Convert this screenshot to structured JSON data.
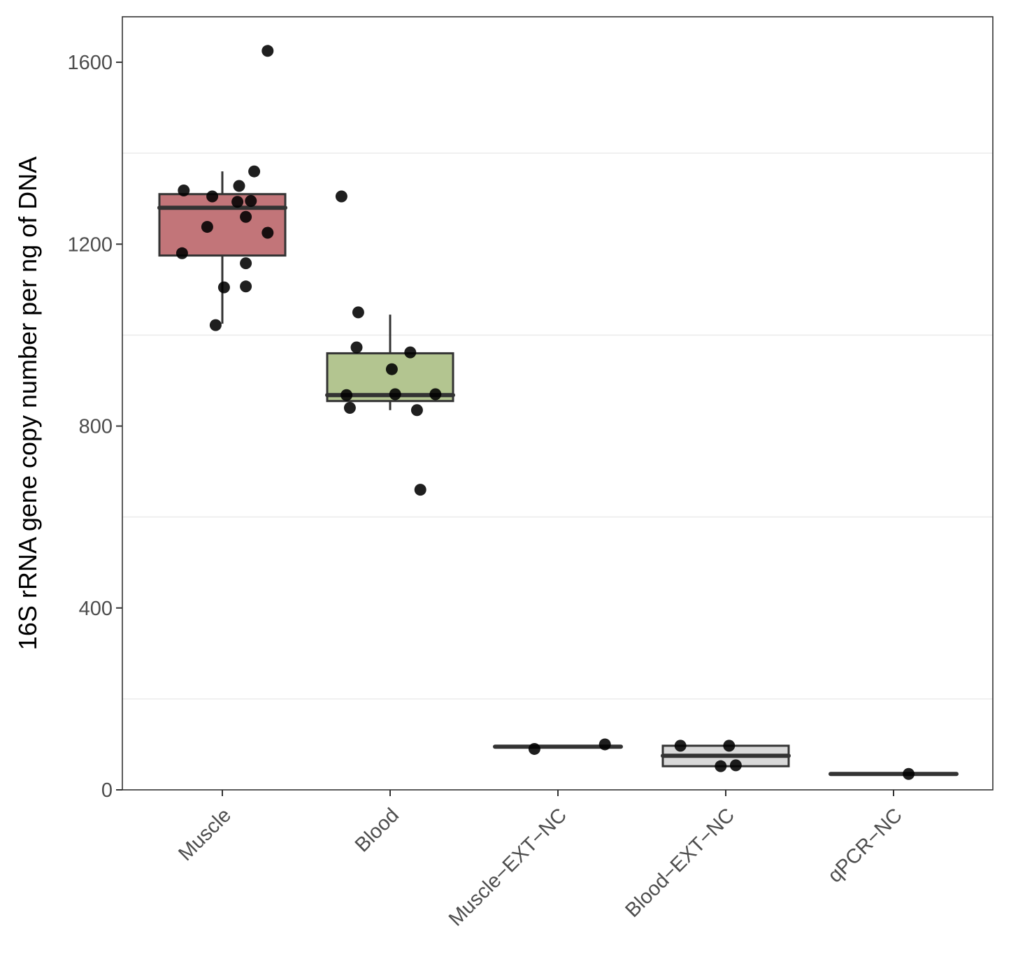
{
  "chart_data": {
    "type": "boxplot",
    "title": "",
    "xlabel": "",
    "ylabel": "16S rRNA gene copy number per ng of DNA",
    "ylim": [
      0,
      1700
    ],
    "yticks": [
      0,
      400,
      800,
      1200,
      1600
    ],
    "grid": "horizontal",
    "categories": [
      "Muscle",
      "Blood",
      "Muscle−EXT−NC",
      "Blood−EXT−NC",
      "qPCR−NC"
    ],
    "boxes": [
      {
        "category": "Muscle",
        "fill": "#c27579",
        "whisker_low": 1025,
        "q1": 1175,
        "median": 1280,
        "q3": 1310,
        "whisker_high": 1360
      },
      {
        "category": "Blood",
        "fill": "#b3c590",
        "whisker_low": 835,
        "q1": 855,
        "median": 868,
        "q3": 960,
        "whisker_high": 1045
      },
      {
        "category": "Muscle−EXT−NC",
        "fill": "#d0d0d0",
        "whisker_low": 95,
        "q1": 95,
        "median": 95,
        "q3": 95,
        "whisker_high": 95
      },
      {
        "category": "Blood−EXT−NC",
        "fill": "#d9d9d9",
        "whisker_low": 52,
        "q1": 52,
        "median": 75,
        "q3": 97,
        "whisker_high": 97
      },
      {
        "category": "qPCR−NC",
        "fill": "#d0d0d0",
        "whisker_low": 35,
        "q1": 35,
        "median": 35,
        "q3": 35,
        "whisker_high": 35
      }
    ],
    "points": [
      {
        "category": "Muscle",
        "jitter": 0.27,
        "value": 1625
      },
      {
        "category": "Muscle",
        "jitter": 0.19,
        "value": 1360
      },
      {
        "category": "Muscle",
        "jitter": 0.1,
        "value": 1328
      },
      {
        "category": "Muscle",
        "jitter": -0.23,
        "value": 1318
      },
      {
        "category": "Muscle",
        "jitter": -0.06,
        "value": 1305
      },
      {
        "category": "Muscle",
        "jitter": 0.09,
        "value": 1293
      },
      {
        "category": "Muscle",
        "jitter": 0.17,
        "value": 1295
      },
      {
        "category": "Muscle",
        "jitter": 0.14,
        "value": 1260
      },
      {
        "category": "Muscle",
        "jitter": -0.09,
        "value": 1238
      },
      {
        "category": "Muscle",
        "jitter": 0.27,
        "value": 1225
      },
      {
        "category": "Muscle",
        "jitter": -0.24,
        "value": 1180
      },
      {
        "category": "Muscle",
        "jitter": 0.14,
        "value": 1158
      },
      {
        "category": "Muscle",
        "jitter": 0.01,
        "value": 1105
      },
      {
        "category": "Muscle",
        "jitter": 0.14,
        "value": 1107
      },
      {
        "category": "Muscle",
        "jitter": -0.04,
        "value": 1022
      },
      {
        "category": "Blood",
        "jitter": -0.29,
        "value": 1305
      },
      {
        "category": "Blood",
        "jitter": -0.19,
        "value": 1050
      },
      {
        "category": "Blood",
        "jitter": -0.2,
        "value": 973
      },
      {
        "category": "Blood",
        "jitter": 0.12,
        "value": 962
      },
      {
        "category": "Blood",
        "jitter": 0.01,
        "value": 925
      },
      {
        "category": "Blood",
        "jitter": -0.26,
        "value": 868
      },
      {
        "category": "Blood",
        "jitter": 0.03,
        "value": 870
      },
      {
        "category": "Blood",
        "jitter": 0.27,
        "value": 870
      },
      {
        "category": "Blood",
        "jitter": -0.24,
        "value": 840
      },
      {
        "category": "Blood",
        "jitter": 0.16,
        "value": 835
      },
      {
        "category": "Blood",
        "jitter": 0.18,
        "value": 660
      },
      {
        "category": "Muscle−EXT−NC",
        "jitter": -0.14,
        "value": 90
      },
      {
        "category": "Muscle−EXT−NC",
        "jitter": 0.28,
        "value": 100
      },
      {
        "category": "Blood−EXT−NC",
        "jitter": -0.27,
        "value": 97
      },
      {
        "category": "Blood−EXT−NC",
        "jitter": 0.02,
        "value": 97
      },
      {
        "category": "Blood−EXT−NC",
        "jitter": -0.03,
        "value": 52
      },
      {
        "category": "Blood−EXT−NC",
        "jitter": 0.06,
        "value": 54
      },
      {
        "category": "qPCR−NC",
        "jitter": 0.09,
        "value": 35
      }
    ]
  }
}
